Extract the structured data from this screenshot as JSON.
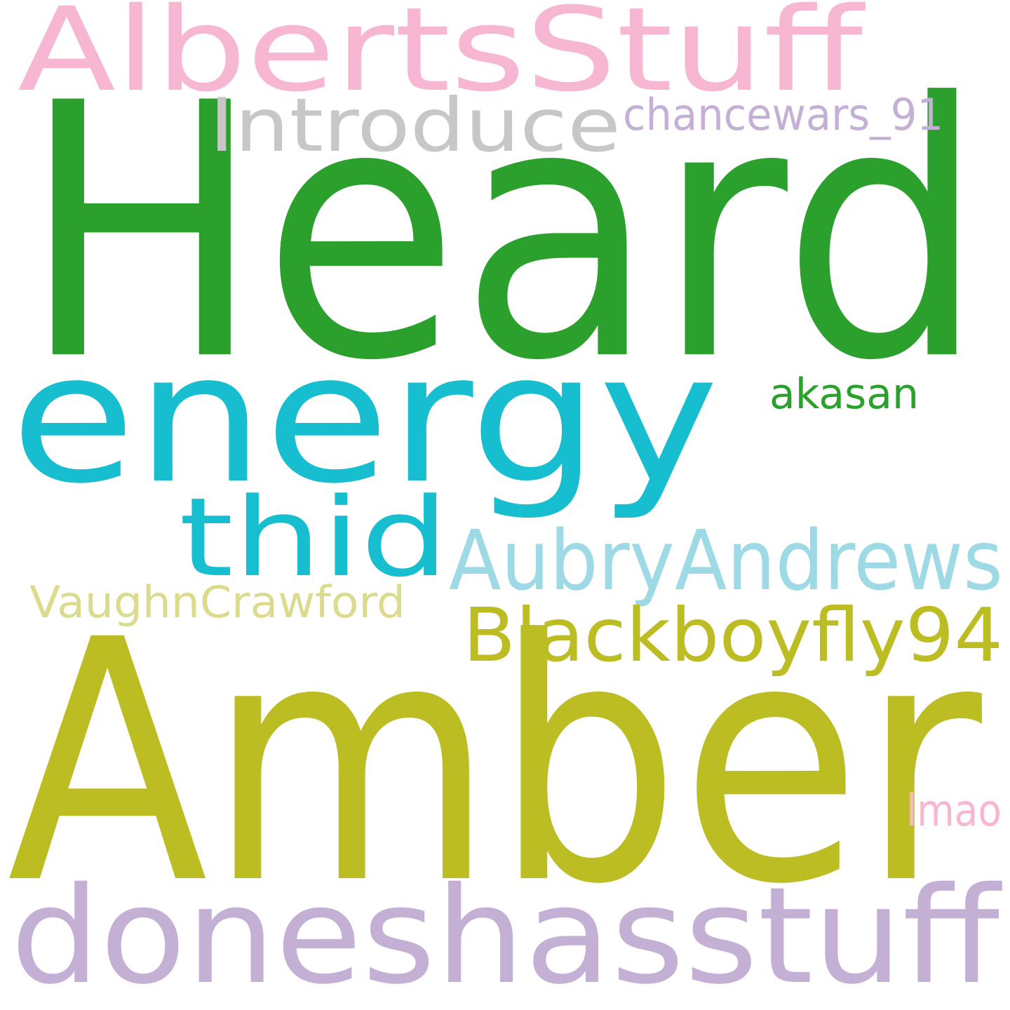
{
  "words": [
    {
      "text": "AlbertsStuff",
      "color": "#f7b6d2"
    },
    {
      "text": "Heard",
      "color": "#2ca02c"
    },
    {
      "text": "Introduce",
      "color": "#c7c7c7"
    },
    {
      "text": "chancewars_91",
      "color": "#c5b0d5"
    },
    {
      "text": "energy",
      "color": "#17becf"
    },
    {
      "text": "akasan",
      "color": "#2ca02c"
    },
    {
      "text": "thid",
      "color": "#17becf"
    },
    {
      "text": "AubryAndrews",
      "color": "#9edae5"
    },
    {
      "text": "VaughnCrawford",
      "color": "#dbdb8d"
    },
    {
      "text": "Blackboyfly94",
      "color": "#bcbd22"
    },
    {
      "text": "Amber",
      "color": "#bcbd22"
    },
    {
      "text": "lmao",
      "color": "#f7b6d2"
    },
    {
      "text": "doneshasstuff",
      "color": "#c5b0d5"
    }
  ]
}
